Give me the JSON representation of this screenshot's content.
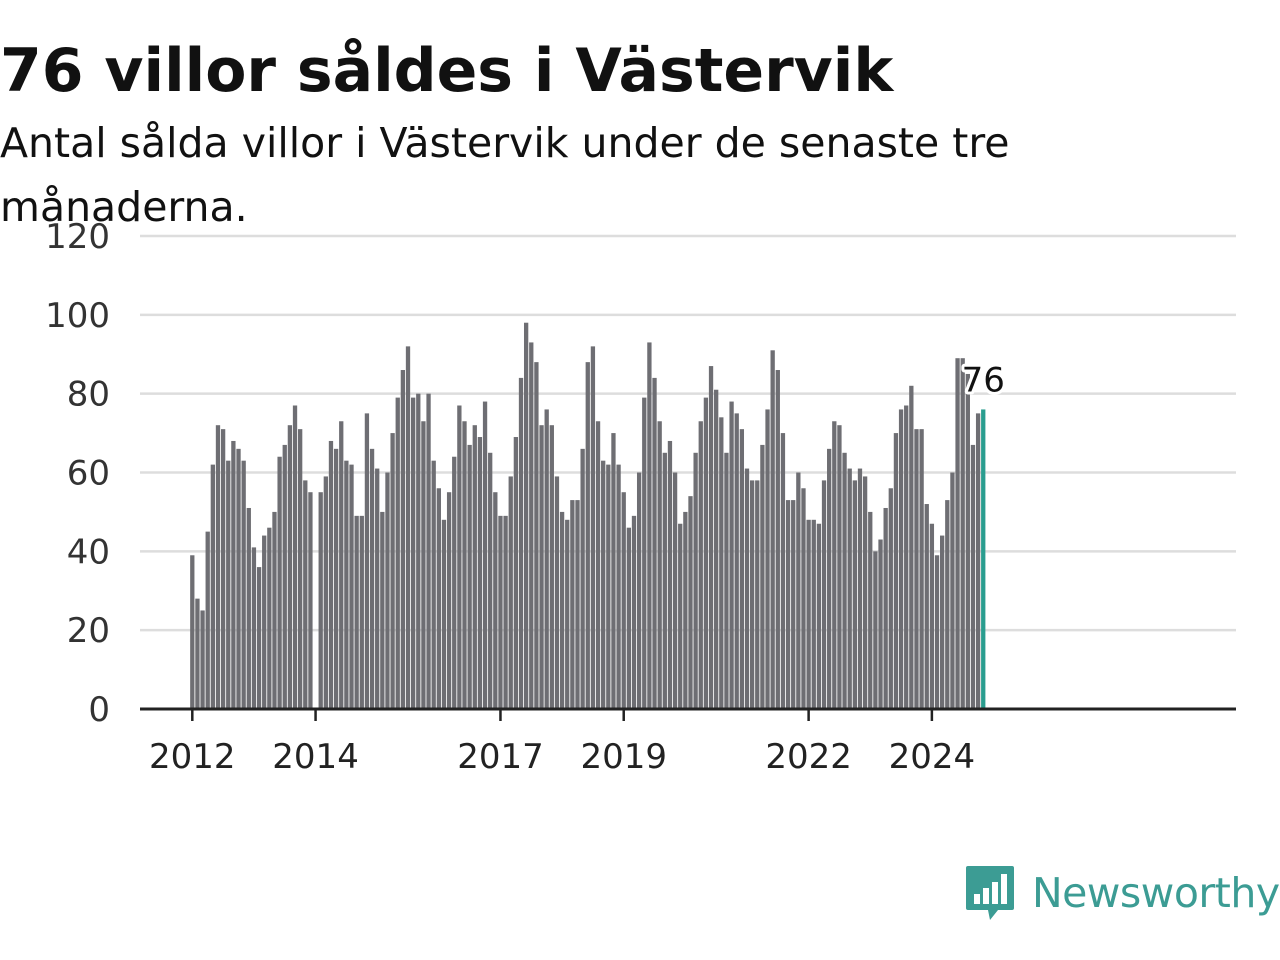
{
  "title": "76 villor såldes i Västervik",
  "subtitle": "Antal sålda villor i Västervik under de senaste tre månaderna.",
  "brand": {
    "name": "Newsworthy",
    "icon": "bar-chart-speech-bubble-icon",
    "color": "#3c9c94"
  },
  "colors": {
    "bar": "#6e6e73",
    "highlight": "#2a9d8f",
    "grid": "#dddddd",
    "axis": "#222222"
  },
  "chart_data": {
    "type": "bar",
    "title": "76 villor såldes i Västervik",
    "subtitle": "Antal sålda villor i Västervik under de senaste tre månaderna.",
    "xlabel": "",
    "ylabel": "",
    "ylim": [
      0,
      120
    ],
    "yticks": [
      "0",
      "20",
      "40",
      "60",
      "80",
      "100",
      "120"
    ],
    "grid": true,
    "start": "2012-01",
    "x_ticks": [
      {
        "label": "2012",
        "month": "2012-01"
      },
      {
        "label": "2014",
        "month": "2014-01"
      },
      {
        "label": "2017",
        "month": "2017-01"
      },
      {
        "label": "2019",
        "month": "2019-01"
      },
      {
        "label": "2022",
        "month": "2022-01"
      },
      {
        "label": "2024",
        "month": "2024-01"
      }
    ],
    "values": [
      39,
      28,
      25,
      45,
      62,
      72,
      71,
      63,
      68,
      66,
      63,
      51,
      41,
      36,
      44,
      46,
      50,
      64,
      67,
      72,
      77,
      71,
      58,
      55,
      0,
      55,
      59,
      68,
      66,
      73,
      63,
      62,
      49,
      49,
      75,
      66,
      61,
      50,
      60,
      70,
      79,
      86,
      92,
      79,
      80,
      73,
      80,
      63,
      56,
      48,
      55,
      64,
      77,
      73,
      67,
      72,
      69,
      78,
      65,
      55,
      49,
      49,
      59,
      69,
      84,
      98,
      93,
      88,
      72,
      76,
      72,
      59,
      50,
      48,
      53,
      53,
      66,
      88,
      92,
      73,
      63,
      62,
      70,
      62,
      55,
      46,
      49,
      60,
      79,
      93,
      84,
      73,
      65,
      68,
      60,
      47,
      50,
      54,
      65,
      73,
      79,
      87,
      81,
      74,
      65,
      78,
      75,
      71,
      61,
      58,
      58,
      67,
      76,
      91,
      86,
      70,
      53,
      53,
      60,
      56,
      48,
      48,
      47,
      58,
      66,
      73,
      72,
      65,
      61,
      58,
      61,
      59,
      50,
      40,
      43,
      51,
      56,
      70,
      76,
      77,
      82,
      71,
      71,
      52,
      47,
      39,
      44,
      53,
      60,
      89,
      89,
      85,
      67,
      75,
      76
    ],
    "highlight": {
      "month": "2024-11",
      "value": 76,
      "label": "76"
    }
  }
}
